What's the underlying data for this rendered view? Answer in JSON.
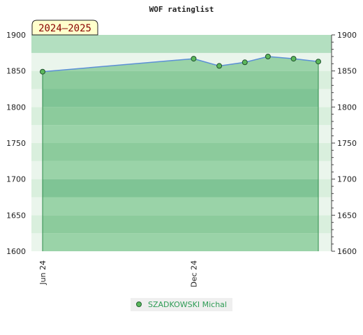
{
  "chart_data": {
    "type": "area",
    "title": "WOF ratinglist",
    "season_label": "2024–2025",
    "ylim": [
      1600,
      1900
    ],
    "y_ticks": [
      1600,
      1650,
      1700,
      1750,
      1800,
      1850,
      1900
    ],
    "x_range": [
      "2024-06-01",
      "2025-06-15"
    ],
    "x_ticks": [
      {
        "date": "2024-06-01",
        "label": "Jun 24"
      },
      {
        "date": "2024-12-01",
        "label": "Dec 24"
      }
    ],
    "series": [
      {
        "name": "SZADKOWSKI Michal",
        "color": "#2e9c55",
        "line_color": "#5b8fd6",
        "points": [
          {
            "x": "2024-06-01",
            "y": 1849
          },
          {
            "x": "2024-12-01",
            "y": 1867
          },
          {
            "x": "2025-01-01",
            "y": 1857
          },
          {
            "x": "2025-02-01",
            "y": 1862
          },
          {
            "x": "2025-03-01",
            "y": 1870
          },
          {
            "x": "2025-04-01",
            "y": 1867
          },
          {
            "x": "2025-05-01",
            "y": 1863
          }
        ]
      }
    ],
    "grid": true,
    "legend_position": "bottom"
  }
}
